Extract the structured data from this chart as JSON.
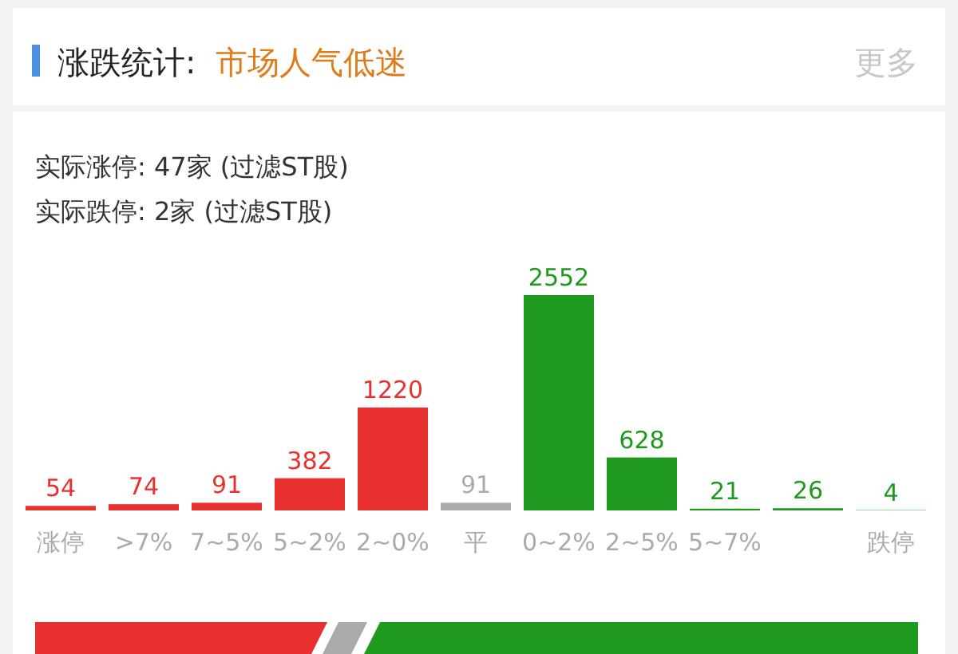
{
  "chart_data": {
    "type": "bar",
    "title": "涨跌统计:",
    "subtitle": "市场人气低迷",
    "annotations": [
      "更多",
      "实际涨停: 47家 (过滤ST股)",
      "实际跌停: 2家 (过滤ST股)"
    ],
    "categories": [
      "涨停",
      ">7%",
      "7~5%",
      "5~2%",
      "2~0%",
      "平",
      "0~2%",
      "2~5%",
      "5~7%",
      null,
      "跌停"
    ],
    "values": [
      54,
      74,
      91,
      382,
      1220,
      91,
      2552,
      628,
      21,
      26,
      4
    ],
    "colors": [
      "#e8312f",
      "#e8312f",
      "#e8312f",
      "#e8312f",
      "#e8312f",
      "#aaaaaa",
      "#1f9a1f",
      "#1f9a1f",
      "#1f9a1f",
      "#1f9a1f",
      "#1f9a1f"
    ],
    "data_labels": true
  }
}
